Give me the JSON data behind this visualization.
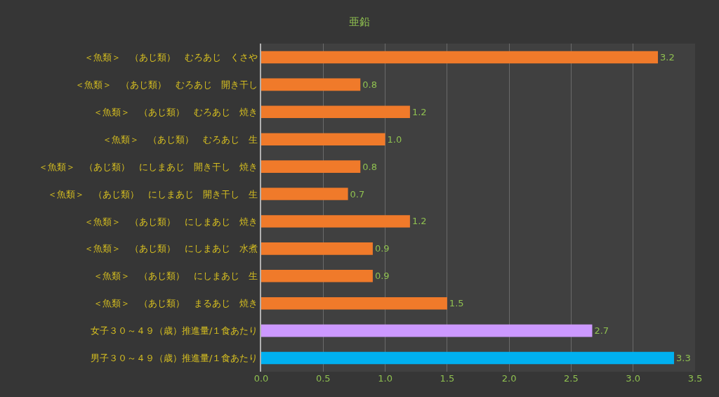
{
  "chart_data": {
    "type": "bar",
    "orientation": "horizontal",
    "title": "亜鉛",
    "categories": [
      "＜魚類＞　（あじ類）　むろあじ　くさや",
      "＜魚類＞　（あじ類）　むろあじ　開き干し",
      "＜魚類＞　（あじ類）　むろあじ　焼き",
      "＜魚類＞　（あじ類）　むろあじ　生",
      "＜魚類＞　（あじ類）　にしまあじ　開き干し　焼き",
      "＜魚類＞　（あじ類）　にしまあじ　開き干し　生",
      "＜魚類＞　（あじ類）　にしまあじ　焼き",
      "＜魚類＞　（あじ類）　にしまあじ　水煮",
      "＜魚類＞　（あじ類）　にしまあじ　生",
      "＜魚類＞　（あじ類）　まるあじ　焼き",
      "女子３０～４９（歳）推進量/１食あたり",
      "男子３０～４９（歳）推進量/１食あたり"
    ],
    "values": [
      3.2,
      0.8,
      1.2,
      1.0,
      0.8,
      0.7,
      1.2,
      0.9,
      0.9,
      1.5,
      2.67,
      3.33
    ],
    "value_labels": [
      "3.2",
      "0.8",
      "1.2",
      "1.0",
      "0.8",
      "0.7",
      "1.2",
      "0.9",
      "0.9",
      "1.5",
      "2.7",
      "3.3"
    ],
    "colors": [
      "#f07a2a",
      "#f07a2a",
      "#f07a2a",
      "#f07a2a",
      "#f07a2a",
      "#f07a2a",
      "#f07a2a",
      "#f07a2a",
      "#f07a2a",
      "#f07a2a",
      "#cc99ff",
      "#00b0f0"
    ],
    "xlim": [
      0,
      3.5
    ],
    "xticks": [
      {
        "value": 0,
        "label": "0.0"
      },
      0.5,
      {
        "value": 1,
        "label": "1.0"
      },
      1.5,
      {
        "value": 2,
        "label": "2.0"
      },
      2.5,
      {
        "value": 3,
        "label": "3.0"
      },
      3.5
    ],
    "grid": "x",
    "legend": false
  }
}
